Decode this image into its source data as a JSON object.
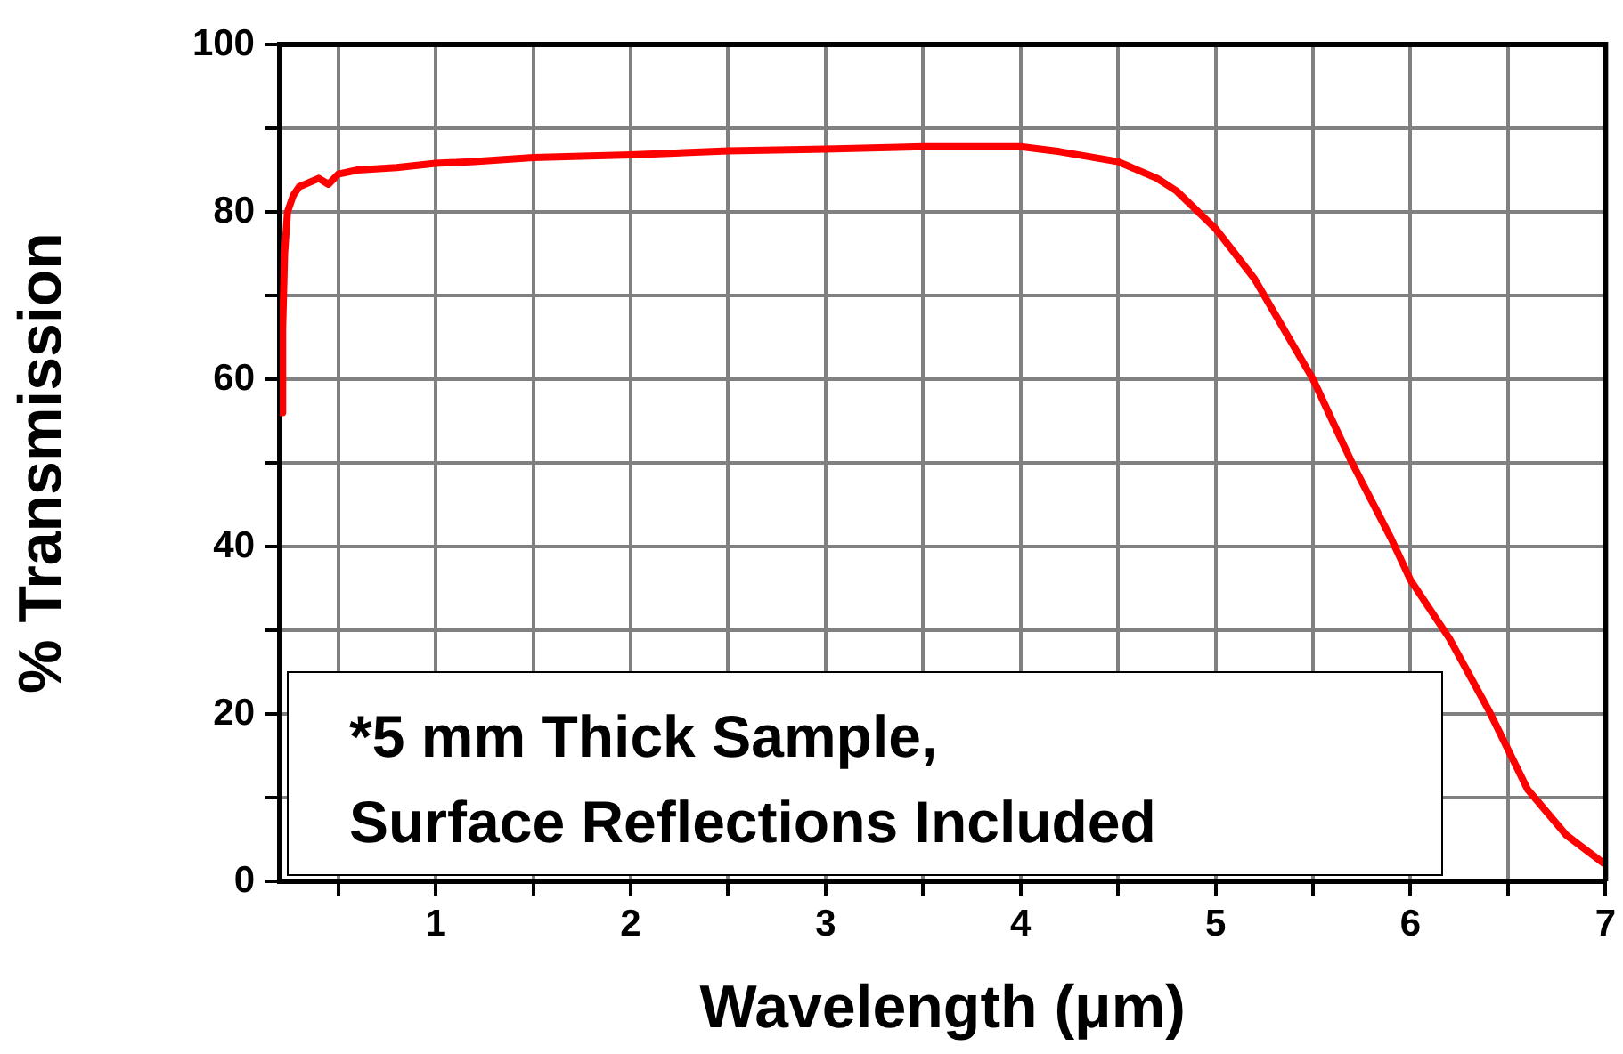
{
  "chart_data": {
    "type": "line",
    "xlabel": "Wavelength (μm)",
    "ylabel": "% Transmission",
    "x": [
      0.21,
      0.215,
      0.225,
      0.24,
      0.27,
      0.3,
      0.35,
      0.4,
      0.45,
      0.5,
      0.6,
      0.8,
      1.0,
      1.2,
      1.5,
      2,
      2.5,
      3,
      3.5,
      4,
      4.2,
      4.5,
      4.7,
      4.8,
      5,
      5.2,
      5.4,
      5.5,
      5.7,
      5.9,
      6.0,
      6.2,
      6.4,
      6.6,
      6.8,
      7.0
    ],
    "series": [
      {
        "color": "#ff0000",
        "values": [
          56,
          66,
          75,
          80,
          82,
          83,
          83.5,
          84,
          83.3,
          84.5,
          85,
          85.3,
          85.8,
          86,
          86.5,
          86.8,
          87.3,
          87.5,
          87.8,
          87.8,
          87.2,
          86,
          84,
          82.5,
          78,
          72,
          64,
          60,
          50,
          41,
          36,
          29,
          20.5,
          11,
          5.5,
          2
        ]
      }
    ],
    "xlim": [
      0.2,
      7
    ],
    "xticks": [
      {
        "value": 0.5,
        "label": null
      },
      1,
      {
        "value": 1.5,
        "label": null
      },
      2,
      {
        "value": 2.5,
        "label": null
      },
      3,
      {
        "value": 3.5,
        "label": null
      },
      4,
      {
        "value": 4.5,
        "label": null
      },
      5,
      {
        "value": 5.5,
        "label": null
      },
      6,
      {
        "value": 6.5,
        "label": null
      },
      7
    ],
    "ylim": [
      0,
      100
    ],
    "yticks": [
      0,
      {
        "value": 10,
        "label": null
      },
      20,
      {
        "value": 30,
        "label": null
      },
      40,
      {
        "value": 50,
        "label": null
      },
      60,
      {
        "value": 70,
        "label": null
      },
      80,
      {
        "value": 90,
        "label": null
      },
      100
    ],
    "grid": true,
    "marker": "none",
    "line_style": "solid",
    "annotations": [
      "*5 mm Thick Sample,\nSurface Reflections Included"
    ]
  }
}
